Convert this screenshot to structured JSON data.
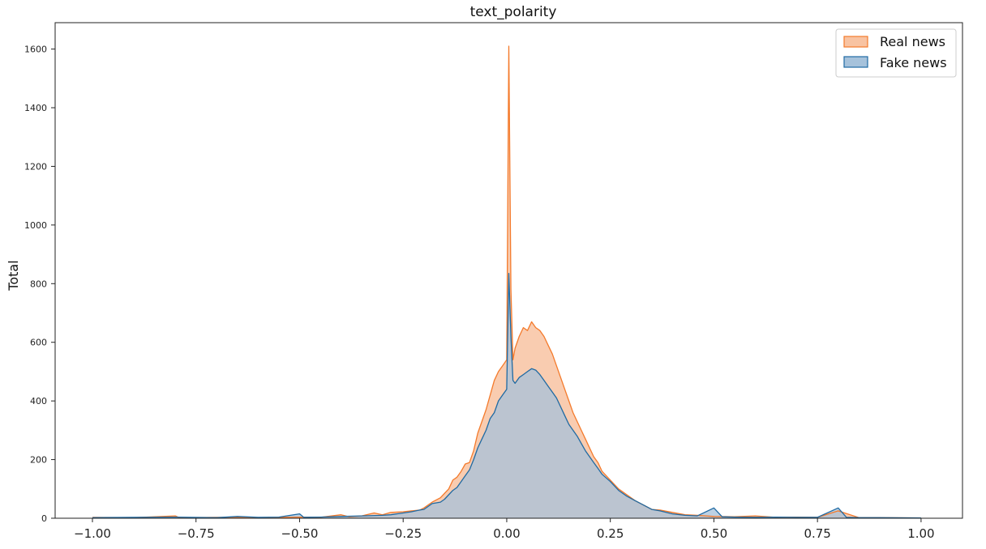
{
  "chart_data": {
    "type": "area",
    "title": "text_polarity",
    "xlabel": "",
    "ylabel": "Total",
    "xlim": [
      -1.09,
      1.1
    ],
    "ylim": [
      0,
      1690
    ],
    "xticks": [
      -1.0,
      -0.75,
      -0.5,
      -0.25,
      0.0,
      0.25,
      0.5,
      0.75,
      1.0
    ],
    "xtick_labels": [
      "−1.00",
      "−0.75",
      "−0.50",
      "−0.25",
      "0.00",
      "0.25",
      "0.50",
      "0.75",
      "1.00"
    ],
    "yticks": [
      0,
      200,
      400,
      600,
      800,
      1000,
      1200,
      1400,
      1600
    ],
    "ytick_labels": [
      "0",
      "200",
      "400",
      "600",
      "800",
      "1000",
      "1200",
      "1400",
      "1600"
    ],
    "grid": false,
    "legend_position": "top-right",
    "series": [
      {
        "name": "Real news",
        "color": "#f47a2b",
        "fill": "#f8c3a2",
        "points": [
          [
            -1.0,
            3
          ],
          [
            -0.9,
            2
          ],
          [
            -0.8,
            8
          ],
          [
            -0.79,
            2
          ],
          [
            -0.7,
            3
          ],
          [
            -0.6,
            2
          ],
          [
            -0.5,
            4
          ],
          [
            -0.45,
            3
          ],
          [
            -0.4,
            12
          ],
          [
            -0.38,
            5
          ],
          [
            -0.35,
            8
          ],
          [
            -0.32,
            18
          ],
          [
            -0.3,
            12
          ],
          [
            -0.28,
            20
          ],
          [
            -0.25,
            22
          ],
          [
            -0.23,
            25
          ],
          [
            -0.21,
            28
          ],
          [
            -0.2,
            35
          ],
          [
            -0.18,
            55
          ],
          [
            -0.16,
            70
          ],
          [
            -0.15,
            85
          ],
          [
            -0.14,
            100
          ],
          [
            -0.13,
            130
          ],
          [
            -0.12,
            140
          ],
          [
            -0.11,
            160
          ],
          [
            -0.1,
            185
          ],
          [
            -0.09,
            190
          ],
          [
            -0.08,
            230
          ],
          [
            -0.07,
            290
          ],
          [
            -0.06,
            330
          ],
          [
            -0.05,
            370
          ],
          [
            -0.04,
            420
          ],
          [
            -0.03,
            470
          ],
          [
            -0.02,
            500
          ],
          [
            -0.01,
            520
          ],
          [
            0.0,
            540
          ],
          [
            0.005,
            1610
          ],
          [
            0.01,
            780
          ],
          [
            0.015,
            540
          ],
          [
            0.02,
            580
          ],
          [
            0.03,
            620
          ],
          [
            0.04,
            650
          ],
          [
            0.05,
            640
          ],
          [
            0.06,
            670
          ],
          [
            0.07,
            650
          ],
          [
            0.08,
            640
          ],
          [
            0.09,
            620
          ],
          [
            0.1,
            590
          ],
          [
            0.11,
            560
          ],
          [
            0.12,
            520
          ],
          [
            0.13,
            480
          ],
          [
            0.14,
            440
          ],
          [
            0.15,
            400
          ],
          [
            0.16,
            360
          ],
          [
            0.17,
            330
          ],
          [
            0.18,
            300
          ],
          [
            0.19,
            270
          ],
          [
            0.2,
            240
          ],
          [
            0.21,
            210
          ],
          [
            0.22,
            190
          ],
          [
            0.23,
            160
          ],
          [
            0.25,
            130
          ],
          [
            0.27,
            100
          ],
          [
            0.29,
            80
          ],
          [
            0.31,
            60
          ],
          [
            0.33,
            45
          ],
          [
            0.35,
            30
          ],
          [
            0.37,
            28
          ],
          [
            0.4,
            20
          ],
          [
            0.43,
            12
          ],
          [
            0.46,
            10
          ],
          [
            0.5,
            6
          ],
          [
            0.55,
            5
          ],
          [
            0.6,
            8
          ],
          [
            0.65,
            3
          ],
          [
            0.7,
            4
          ],
          [
            0.75,
            3
          ],
          [
            0.8,
            25
          ],
          [
            0.85,
            2
          ],
          [
            0.9,
            2
          ],
          [
            1.0,
            1
          ]
        ]
      },
      {
        "name": "Fake news",
        "color": "#1f6aa3",
        "fill": "#a6c2db",
        "points": [
          [
            -1.0,
            2
          ],
          [
            -0.9,
            3
          ],
          [
            -0.8,
            4
          ],
          [
            -0.7,
            2
          ],
          [
            -0.65,
            6
          ],
          [
            -0.6,
            3
          ],
          [
            -0.55,
            4
          ],
          [
            -0.5,
            15
          ],
          [
            -0.49,
            3
          ],
          [
            -0.45,
            4
          ],
          [
            -0.4,
            6
          ],
          [
            -0.35,
            8
          ],
          [
            -0.3,
            10
          ],
          [
            -0.28,
            12
          ],
          [
            -0.25,
            18
          ],
          [
            -0.23,
            22
          ],
          [
            -0.21,
            28
          ],
          [
            -0.2,
            30
          ],
          [
            -0.18,
            50
          ],
          [
            -0.16,
            55
          ],
          [
            -0.15,
            65
          ],
          [
            -0.14,
            80
          ],
          [
            -0.13,
            95
          ],
          [
            -0.12,
            105
          ],
          [
            -0.11,
            125
          ],
          [
            -0.1,
            145
          ],
          [
            -0.09,
            165
          ],
          [
            -0.08,
            200
          ],
          [
            -0.07,
            240
          ],
          [
            -0.06,
            270
          ],
          [
            -0.05,
            300
          ],
          [
            -0.04,
            340
          ],
          [
            -0.03,
            360
          ],
          [
            -0.02,
            400
          ],
          [
            -0.01,
            420
          ],
          [
            0.0,
            440
          ],
          [
            0.005,
            835
          ],
          [
            0.01,
            620
          ],
          [
            0.015,
            470
          ],
          [
            0.02,
            460
          ],
          [
            0.03,
            480
          ],
          [
            0.04,
            490
          ],
          [
            0.05,
            500
          ],
          [
            0.06,
            510
          ],
          [
            0.07,
            505
          ],
          [
            0.08,
            490
          ],
          [
            0.09,
            470
          ],
          [
            0.1,
            450
          ],
          [
            0.11,
            430
          ],
          [
            0.12,
            410
          ],
          [
            0.13,
            380
          ],
          [
            0.14,
            350
          ],
          [
            0.15,
            320
          ],
          [
            0.16,
            300
          ],
          [
            0.17,
            280
          ],
          [
            0.18,
            255
          ],
          [
            0.19,
            230
          ],
          [
            0.2,
            210
          ],
          [
            0.21,
            190
          ],
          [
            0.22,
            170
          ],
          [
            0.23,
            150
          ],
          [
            0.25,
            125
          ],
          [
            0.27,
            95
          ],
          [
            0.29,
            75
          ],
          [
            0.31,
            60
          ],
          [
            0.33,
            45
          ],
          [
            0.35,
            30
          ],
          [
            0.37,
            25
          ],
          [
            0.4,
            15
          ],
          [
            0.43,
            10
          ],
          [
            0.46,
            8
          ],
          [
            0.5,
            35
          ],
          [
            0.52,
            5
          ],
          [
            0.55,
            4
          ],
          [
            0.6,
            3
          ],
          [
            0.65,
            4
          ],
          [
            0.7,
            3
          ],
          [
            0.75,
            3
          ],
          [
            0.8,
            35
          ],
          [
            0.82,
            3
          ],
          [
            0.85,
            2
          ],
          [
            0.9,
            2
          ],
          [
            1.0,
            1
          ]
        ]
      }
    ]
  }
}
